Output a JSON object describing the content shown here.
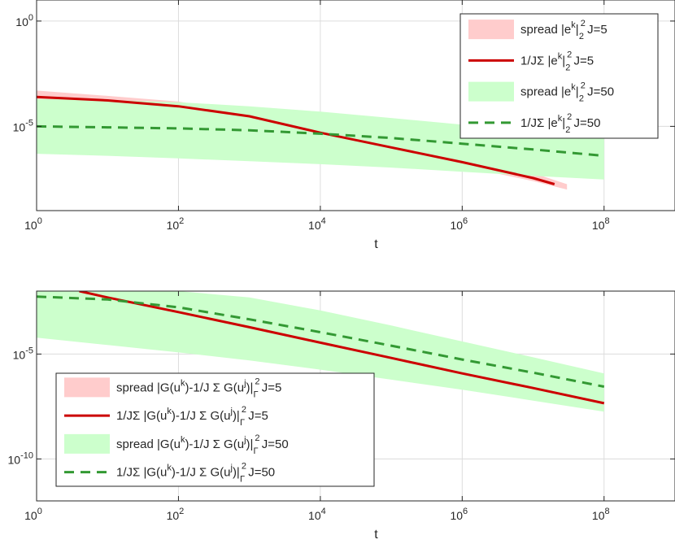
{
  "chart_data": [
    {
      "type": "line",
      "xscale": "log",
      "yscale": "log",
      "xlabel": "t",
      "ylabel": "",
      "xlim": [
        1,
        1000000000.0
      ],
      "ylim": [
        1e-09,
        10.0
      ],
      "xticks": [
        1,
        100,
        10000,
        1000000,
        100000000
      ],
      "xtick_labels": [
        {
          "base": "10",
          "exp": "0"
        },
        {
          "base": "10",
          "exp": "2"
        },
        {
          "base": "10",
          "exp": "4"
        },
        {
          "base": "10",
          "exp": "6"
        },
        {
          "base": "10",
          "exp": "8"
        }
      ],
      "yticks": [
        1,
        1e-05
      ],
      "ytick_labels": [
        {
          "base": "10",
          "exp": "0"
        },
        {
          "base": "10",
          "exp": "-5"
        }
      ],
      "grid": true,
      "legend_position": "top-right",
      "legend": [
        {
          "kind": "fill",
          "color": "#ffcccc",
          "text": "spread |e",
          "sup": "k",
          "after": "|",
          "sup2": "2",
          "sub2": "2",
          "tail": " J=5"
        },
        {
          "kind": "solid",
          "color": "#cc0000",
          "text": "1/JΣ |e",
          "sup": "k",
          "after": "|",
          "sup2": "2",
          "sub2": "2",
          "tail": " J=5"
        },
        {
          "kind": "fill",
          "color": "#ccffcc",
          "text": "spread |e",
          "sup": "k",
          "after": "|",
          "sup2": "2",
          "sub2": "2",
          "tail": " J=50"
        },
        {
          "kind": "dashed",
          "color": "#339933",
          "text": "1/JΣ |e",
          "sup": "k",
          "after": "|",
          "sup2": "2",
          "sub2": "2",
          "tail": " J=50"
        }
      ],
      "series": [
        {
          "name": "spread J=5",
          "kind": "band",
          "color": "#ffcccc",
          "x": [
            1,
            10,
            100,
            1000,
            10000,
            100000,
            1000000,
            10000000,
            30000000
          ],
          "lower": [
            0.00012,
            7e-05,
            4e-05,
            1.3e-05,
            3e-06,
            6e-07,
            1.3e-07,
            2.5e-08,
            1e-08
          ],
          "upper": [
            0.0005,
            0.00028,
            0.00015,
            4e-05,
            8e-06,
            1.5e-06,
            3e-07,
            6e-08,
            1.8e-08
          ]
        },
        {
          "name": "spread J=50",
          "kind": "band",
          "color": "#ccffcc",
          "x": [
            1,
            10,
            100,
            1000,
            10000,
            100000,
            1000000,
            10000000,
            100000000
          ],
          "lower": [
            5e-07,
            4e-07,
            3e-07,
            2.2e-07,
            1.6e-07,
            1.1e-07,
            7e-08,
            4.5e-08,
            3e-08
          ],
          "upper": [
            0.0002,
            0.00018,
            0.00014,
            9e-05,
            5e-05,
            2.5e-05,
            1.2e-05,
            6e-06,
            3.5e-06
          ]
        },
        {
          "name": "mean J=5",
          "kind": "line",
          "dash": false,
          "color": "#cc0000",
          "width": 3,
          "x": [
            1,
            10,
            100,
            1000,
            10000,
            100000,
            1000000,
            10000000,
            20000000
          ],
          "y": [
            0.00025,
            0.00017,
            9e-05,
            3e-05,
            5e-06,
            1e-06,
            2e-07,
            3.5e-08,
            1.8e-08
          ]
        },
        {
          "name": "mean J=50",
          "kind": "line",
          "dash": true,
          "color": "#339933",
          "width": 3,
          "x": [
            1,
            10,
            100,
            1000,
            10000,
            100000,
            1000000,
            10000000,
            100000000
          ],
          "y": [
            1e-05,
            9e-06,
            8e-06,
            6.5e-06,
            4.5e-06,
            2.8e-06,
            1.5e-06,
            8e-07,
            4e-07
          ]
        }
      ]
    },
    {
      "type": "line",
      "xscale": "log",
      "yscale": "log",
      "xlabel": "t",
      "ylabel": "",
      "xlim": [
        1,
        1000000000.0
      ],
      "ylim": [
        1e-12,
        0.01
      ],
      "xticks": [
        1,
        100,
        10000,
        1000000,
        100000000
      ],
      "xtick_labels": [
        {
          "base": "10",
          "exp": "0"
        },
        {
          "base": "10",
          "exp": "2"
        },
        {
          "base": "10",
          "exp": "4"
        },
        {
          "base": "10",
          "exp": "6"
        },
        {
          "base": "10",
          "exp": "8"
        }
      ],
      "yticks": [
        1e-05,
        1e-10
      ],
      "ytick_labels": [
        {
          "base": "10",
          "exp": "-5"
        },
        {
          "base": "10",
          "exp": "-10"
        }
      ],
      "grid": true,
      "legend_position": "bottom-left",
      "legend": [
        {
          "kind": "fill",
          "color": "#ffcccc",
          "text": "spread |G(u",
          "sup": "k",
          "mid": ")-1/J Σ G(u",
          "sup3": "j",
          "after": ")|",
          "sup2": "2",
          "sub2": "Γ",
          "tail": " J=5"
        },
        {
          "kind": "solid",
          "color": "#cc0000",
          "text": "1/JΣ |G(u",
          "sup": "k",
          "mid": ")-1/J Σ G(u",
          "sup3": "j",
          "after": ")|",
          "sup2": "2",
          "sub2": "Γ",
          "tail": " J=5"
        },
        {
          "kind": "fill",
          "color": "#ccffcc",
          "text": "spread |G(u",
          "sup": "k",
          "mid": ")-1/J Σ G(u",
          "sup3": "j",
          "after": ")|",
          "sup2": "2",
          "sub2": "Γ",
          "tail": " J=50"
        },
        {
          "kind": "dashed",
          "color": "#339933",
          "text": "1/JΣ |G(u",
          "sup": "k",
          "mid": ")-1/J Σ G(u",
          "sup3": "j",
          "after": ")|",
          "sup2": "2",
          "sub2": "Γ",
          "tail": " J=50"
        }
      ],
      "series": [
        {
          "name": "spread J=5",
          "kind": "band",
          "color": "#ffcccc",
          "x": [
            1,
            2,
            4,
            10,
            30
          ],
          "lower": [
            0.003,
            0.0027,
            0.0023,
            0.0017,
            0.0011
          ],
          "upper": [
            0.01,
            0.01,
            0.01,
            0.01,
            0.01
          ]
        },
        {
          "name": "spread J=50",
          "kind": "band",
          "color": "#ccffcc",
          "x": [
            1,
            10,
            100,
            1000,
            10000,
            100000,
            1000000,
            10000000,
            100000000
          ],
          "lower": [
            6e-05,
            2.7e-05,
            1.2e-05,
            5e-06,
            1.8e-06,
            6e-07,
            2e-07,
            6e-08,
            1.8e-08
          ],
          "upper": [
            0.01,
            0.01,
            0.01,
            0.005,
            0.0012,
            0.00023,
            4e-05,
            7e-06,
            1.2e-06
          ]
        },
        {
          "name": "mean J=5",
          "kind": "line",
          "dash": false,
          "color": "#cc0000",
          "width": 3,
          "x": [
            4,
            10,
            100,
            1000,
            10000,
            100000,
            1000000,
            10000000,
            100000000
          ],
          "y": [
            0.01,
            0.005,
            0.001,
            0.00019,
            3.5e-05,
            6.5e-06,
            1.2e-06,
            2.4e-07,
            4.5e-08
          ]
        },
        {
          "name": "mean J=50",
          "kind": "line",
          "dash": true,
          "color": "#339933",
          "width": 3,
          "x": [
            1,
            10,
            100,
            1000,
            10000,
            100000,
            1000000,
            10000000,
            100000000
          ],
          "y": [
            0.0055,
            0.004,
            0.0017,
            0.00045,
            0.00011,
            2.5e-05,
            5.5e-06,
            1.3e-06,
            2.8e-07
          ]
        }
      ]
    }
  ]
}
